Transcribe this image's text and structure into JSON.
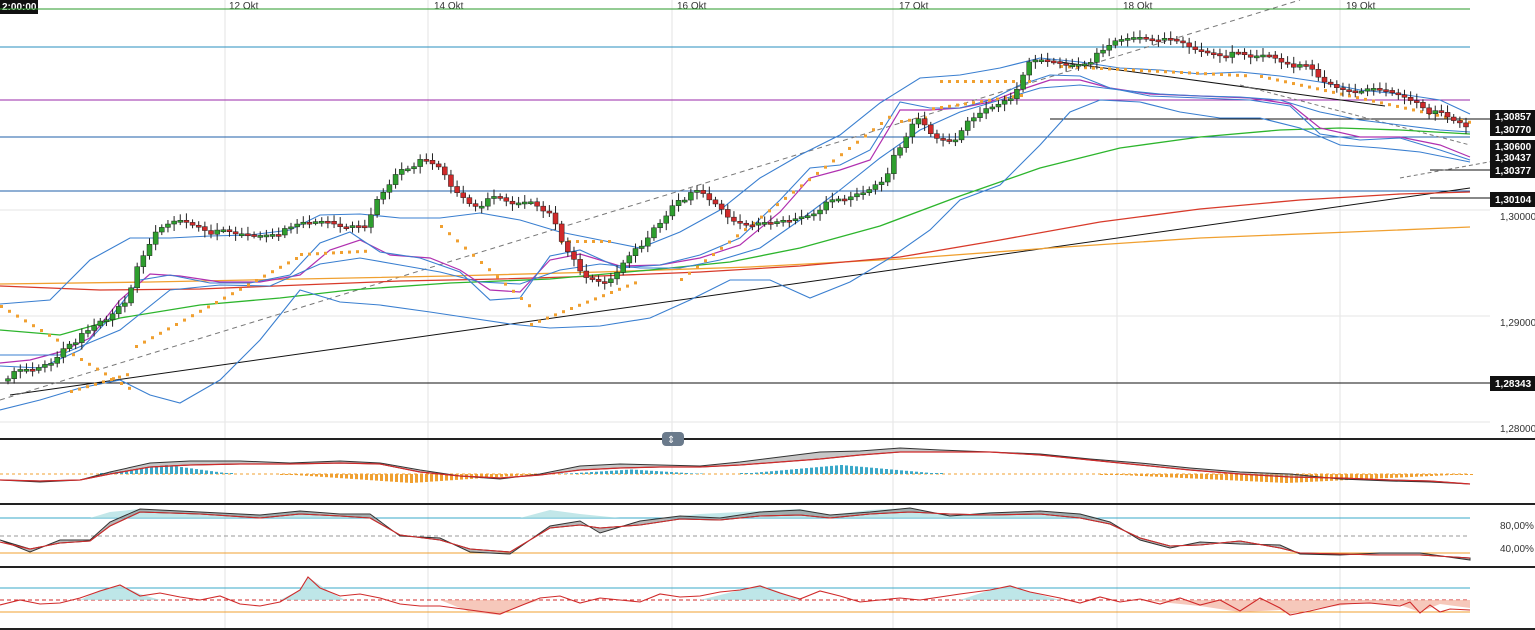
{
  "time_badge": "2:00:00",
  "time_labels": [
    "12 Okt",
    "14 Okt",
    "16 Okt",
    "17 Okt",
    "18 Okt",
    "19 Okt"
  ],
  "price_axis": {
    "grid_labels": [
      "1,30000",
      "1,29000",
      "1,28000"
    ],
    "level_labels": [
      "1,30857",
      "1,30770",
      "1,30600",
      "1,30437",
      "1,30377",
      "1,30104",
      "1,28343"
    ]
  },
  "oscillator_labels": [
    "80,00%",
    "40,00%"
  ],
  "colors": {
    "up": "#2e9e2e",
    "down": "#d02a2a",
    "bollinger": "#3a7fd0",
    "ema_fast": "#b030b0",
    "ema_mid": "#2db52d",
    "ema_slow_red": "#d83a2a",
    "ema_slow_orange": "#f0a030",
    "psar": "#f0a030",
    "macd_hist_pos": "#3aa8c8",
    "macd_hist_neg": "#f0a030"
  },
  "chart_data": {
    "type": "candlestick",
    "symbol": "",
    "x_axis": [
      "12 Okt",
      "14 Okt",
      "16 Okt",
      "17 Okt",
      "18 Okt",
      "19 Okt"
    ],
    "y_range": [
      1.2785,
      1.3128
    ],
    "horizontal_levels": [
      1.30857,
      1.3077,
      1.306,
      1.30437,
      1.30377,
      1.30104,
      1.28343
    ],
    "close_series_approx": [
      1.2836,
      1.2838,
      1.2845,
      1.2862,
      1.287,
      1.288,
      1.2895,
      1.2935,
      1.2955,
      1.2962,
      1.2958,
      1.2952,
      1.295,
      1.295,
      1.2952,
      1.2955,
      1.296,
      1.2962,
      1.2958,
      1.2955,
      1.2985,
      1.3005,
      1.301,
      1.3005,
      1.2985,
      1.2975,
      1.298,
      1.2975,
      1.2978,
      1.297,
      1.2935,
      1.2915,
      1.2912,
      1.2925,
      1.294,
      1.296,
      1.298,
      1.2985,
      1.2975,
      1.2962,
      1.296,
      1.2958,
      1.2962,
      1.2967,
      1.2975,
      1.2978,
      1.2985,
      1.2995,
      1.302,
      1.3045,
      1.303,
      1.303,
      1.3045,
      1.3055,
      1.3063,
      1.309,
      1.3092,
      1.309,
      1.3092,
      1.31,
      1.311,
      1.3113,
      1.3112,
      1.3108,
      1.3102,
      1.31,
      1.3098,
      1.3095,
      1.3098,
      1.3092,
      1.3088,
      1.3075,
      1.307,
      1.307,
      1.3068,
      1.3065,
      1.306,
      1.305,
      1.3043,
      1.3037
    ],
    "indicators": [
      "Bollinger Bands",
      "EMA",
      "Parabolic SAR",
      "MACD",
      "Stochastic",
      "RSI"
    ],
    "stochastic_levels": [
      80,
      40
    ]
  }
}
